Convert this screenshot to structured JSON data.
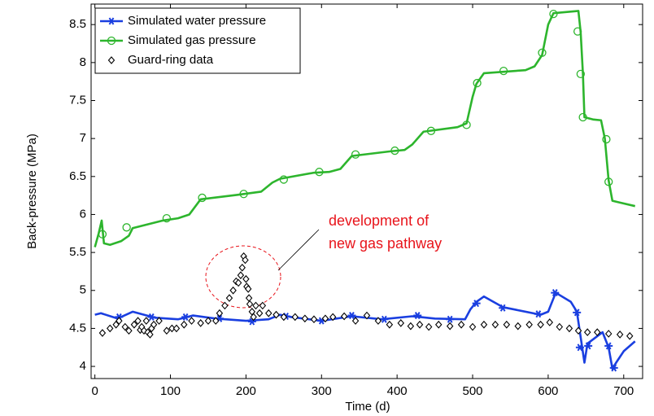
{
  "chart_data": {
    "type": "line",
    "xlabel": "Time (d)",
    "ylabel": "Back-pressure (MPa)",
    "xlim": [
      -5,
      725
    ],
    "ylim": [
      3.84,
      8.77
    ],
    "xticks": [
      0,
      100,
      200,
      300,
      400,
      500,
      600,
      700
    ],
    "yticks": [
      4,
      4.5,
      5,
      5.5,
      6,
      6.5,
      7,
      7.5,
      8,
      8.5
    ],
    "legend": "upper left",
    "annotation": [
      "development of",
      "new gas pathway"
    ],
    "series": [
      {
        "name": "Simulated water pressure",
        "color": "#1a3fe0",
        "marker": "asterisk",
        "x": [
          0,
          8,
          30,
          50,
          80,
          110,
          130,
          160,
          200,
          230,
          245,
          260,
          300,
          340,
          380,
          420,
          450,
          490,
          497,
          505,
          515,
          540,
          590,
          600,
          610,
          630,
          638,
          645,
          648,
          652,
          672,
          680,
          685,
          690,
          700,
          715
        ],
        "values": [
          4.68,
          4.7,
          4.63,
          4.72,
          4.64,
          4.62,
          4.67,
          4.63,
          4.6,
          4.62,
          4.68,
          4.65,
          4.6,
          4.66,
          4.62,
          4.66,
          4.63,
          4.62,
          4.75,
          4.85,
          4.92,
          4.78,
          4.68,
          4.72,
          4.97,
          4.85,
          4.72,
          4.25,
          4.05,
          4.3,
          4.45,
          4.25,
          3.97,
          4.05,
          4.2,
          4.33
        ],
        "marker_x": [
          32,
          75,
          120,
          165,
          208,
          253,
          300,
          340,
          383,
          427,
          470,
          505,
          540,
          587,
          609,
          638,
          642,
          653,
          680,
          687
        ],
        "marker_values": [
          4.65,
          4.65,
          4.65,
          4.63,
          4.59,
          4.66,
          4.6,
          4.67,
          4.62,
          4.67,
          4.62,
          4.83,
          4.77,
          4.69,
          4.97,
          4.71,
          4.25,
          4.27,
          4.27,
          3.98
        ]
      },
      {
        "name": "Simulated gas pressure",
        "color": "#2db52d",
        "marker": "circle",
        "x": [
          0,
          5,
          9,
          12,
          20,
          35,
          45,
          50,
          90,
          110,
          125,
          140,
          190,
          220,
          235,
          245,
          290,
          310,
          325,
          340,
          390,
          410,
          420,
          435,
          480,
          492,
          500,
          505,
          515,
          570,
          582,
          592,
          600,
          607,
          640,
          643,
          646,
          648,
          660,
          670,
          675,
          680,
          685,
          715
        ],
        "values": [
          5.57,
          5.75,
          5.92,
          5.62,
          5.6,
          5.65,
          5.72,
          5.82,
          5.92,
          5.95,
          6.0,
          6.2,
          6.26,
          6.3,
          6.42,
          6.47,
          6.55,
          6.56,
          6.6,
          6.77,
          6.83,
          6.85,
          6.92,
          7.09,
          7.15,
          7.2,
          7.55,
          7.72,
          7.86,
          7.9,
          7.95,
          8.1,
          8.5,
          8.65,
          8.68,
          8.4,
          7.85,
          7.28,
          7.25,
          7.24,
          7.0,
          6.45,
          6.18,
          6.11
        ],
        "marker_x": [
          10,
          42,
          95,
          142,
          197,
          250,
          297,
          345,
          397,
          445,
          492,
          506,
          541,
          592,
          607,
          639,
          643,
          646,
          677,
          680
        ],
        "marker_values": [
          5.74,
          5.83,
          5.95,
          6.22,
          6.27,
          6.46,
          6.56,
          6.79,
          6.84,
          7.1,
          7.18,
          7.73,
          7.89,
          8.13,
          8.64,
          8.41,
          7.85,
          7.28,
          6.99,
          6.43
        ]
      },
      {
        "name": "Guard-ring data",
        "color": "#000000",
        "marker": "diamond",
        "line": false,
        "x": [
          10,
          20,
          28,
          32,
          40,
          45,
          52,
          57,
          60,
          62,
          65,
          68,
          70,
          73,
          75,
          78,
          85,
          95,
          102,
          108,
          118,
          128,
          140,
          150,
          160,
          165,
          172,
          178,
          183,
          187,
          190,
          193,
          195,
          197,
          199,
          200,
          201,
          203,
          204,
          205,
          208,
          210,
          213,
          218,
          222,
          230,
          240,
          250,
          265,
          278,
          290,
          305,
          315,
          330,
          345,
          360,
          375,
          390,
          405,
          418,
          430,
          442,
          455,
          470,
          485,
          500,
          515,
          530,
          545,
          560,
          575,
          590,
          602,
          615,
          628,
          640,
          652,
          665,
          680,
          695,
          708
        ],
        "values": [
          4.44,
          4.5,
          4.55,
          4.6,
          4.52,
          4.47,
          4.55,
          4.6,
          4.48,
          4.52,
          4.47,
          4.6,
          4.45,
          4.42,
          4.5,
          4.55,
          4.6,
          4.47,
          4.5,
          4.5,
          4.55,
          4.6,
          4.57,
          4.6,
          4.6,
          4.7,
          4.8,
          4.9,
          5.0,
          5.12,
          5.1,
          5.2,
          5.3,
          5.45,
          5.4,
          5.15,
          5.05,
          5.02,
          4.9,
          4.82,
          4.72,
          4.65,
          4.8,
          4.7,
          4.8,
          4.7,
          4.68,
          4.65,
          4.65,
          4.63,
          4.62,
          4.63,
          4.65,
          4.66,
          4.6,
          4.67,
          4.6,
          4.55,
          4.57,
          4.53,
          4.55,
          4.52,
          4.55,
          4.53,
          4.55,
          4.52,
          4.55,
          4.55,
          4.55,
          4.53,
          4.55,
          4.55,
          4.58,
          4.52,
          4.5,
          4.47,
          4.45,
          4.45,
          4.43,
          4.42,
          4.4
        ]
      }
    ]
  }
}
